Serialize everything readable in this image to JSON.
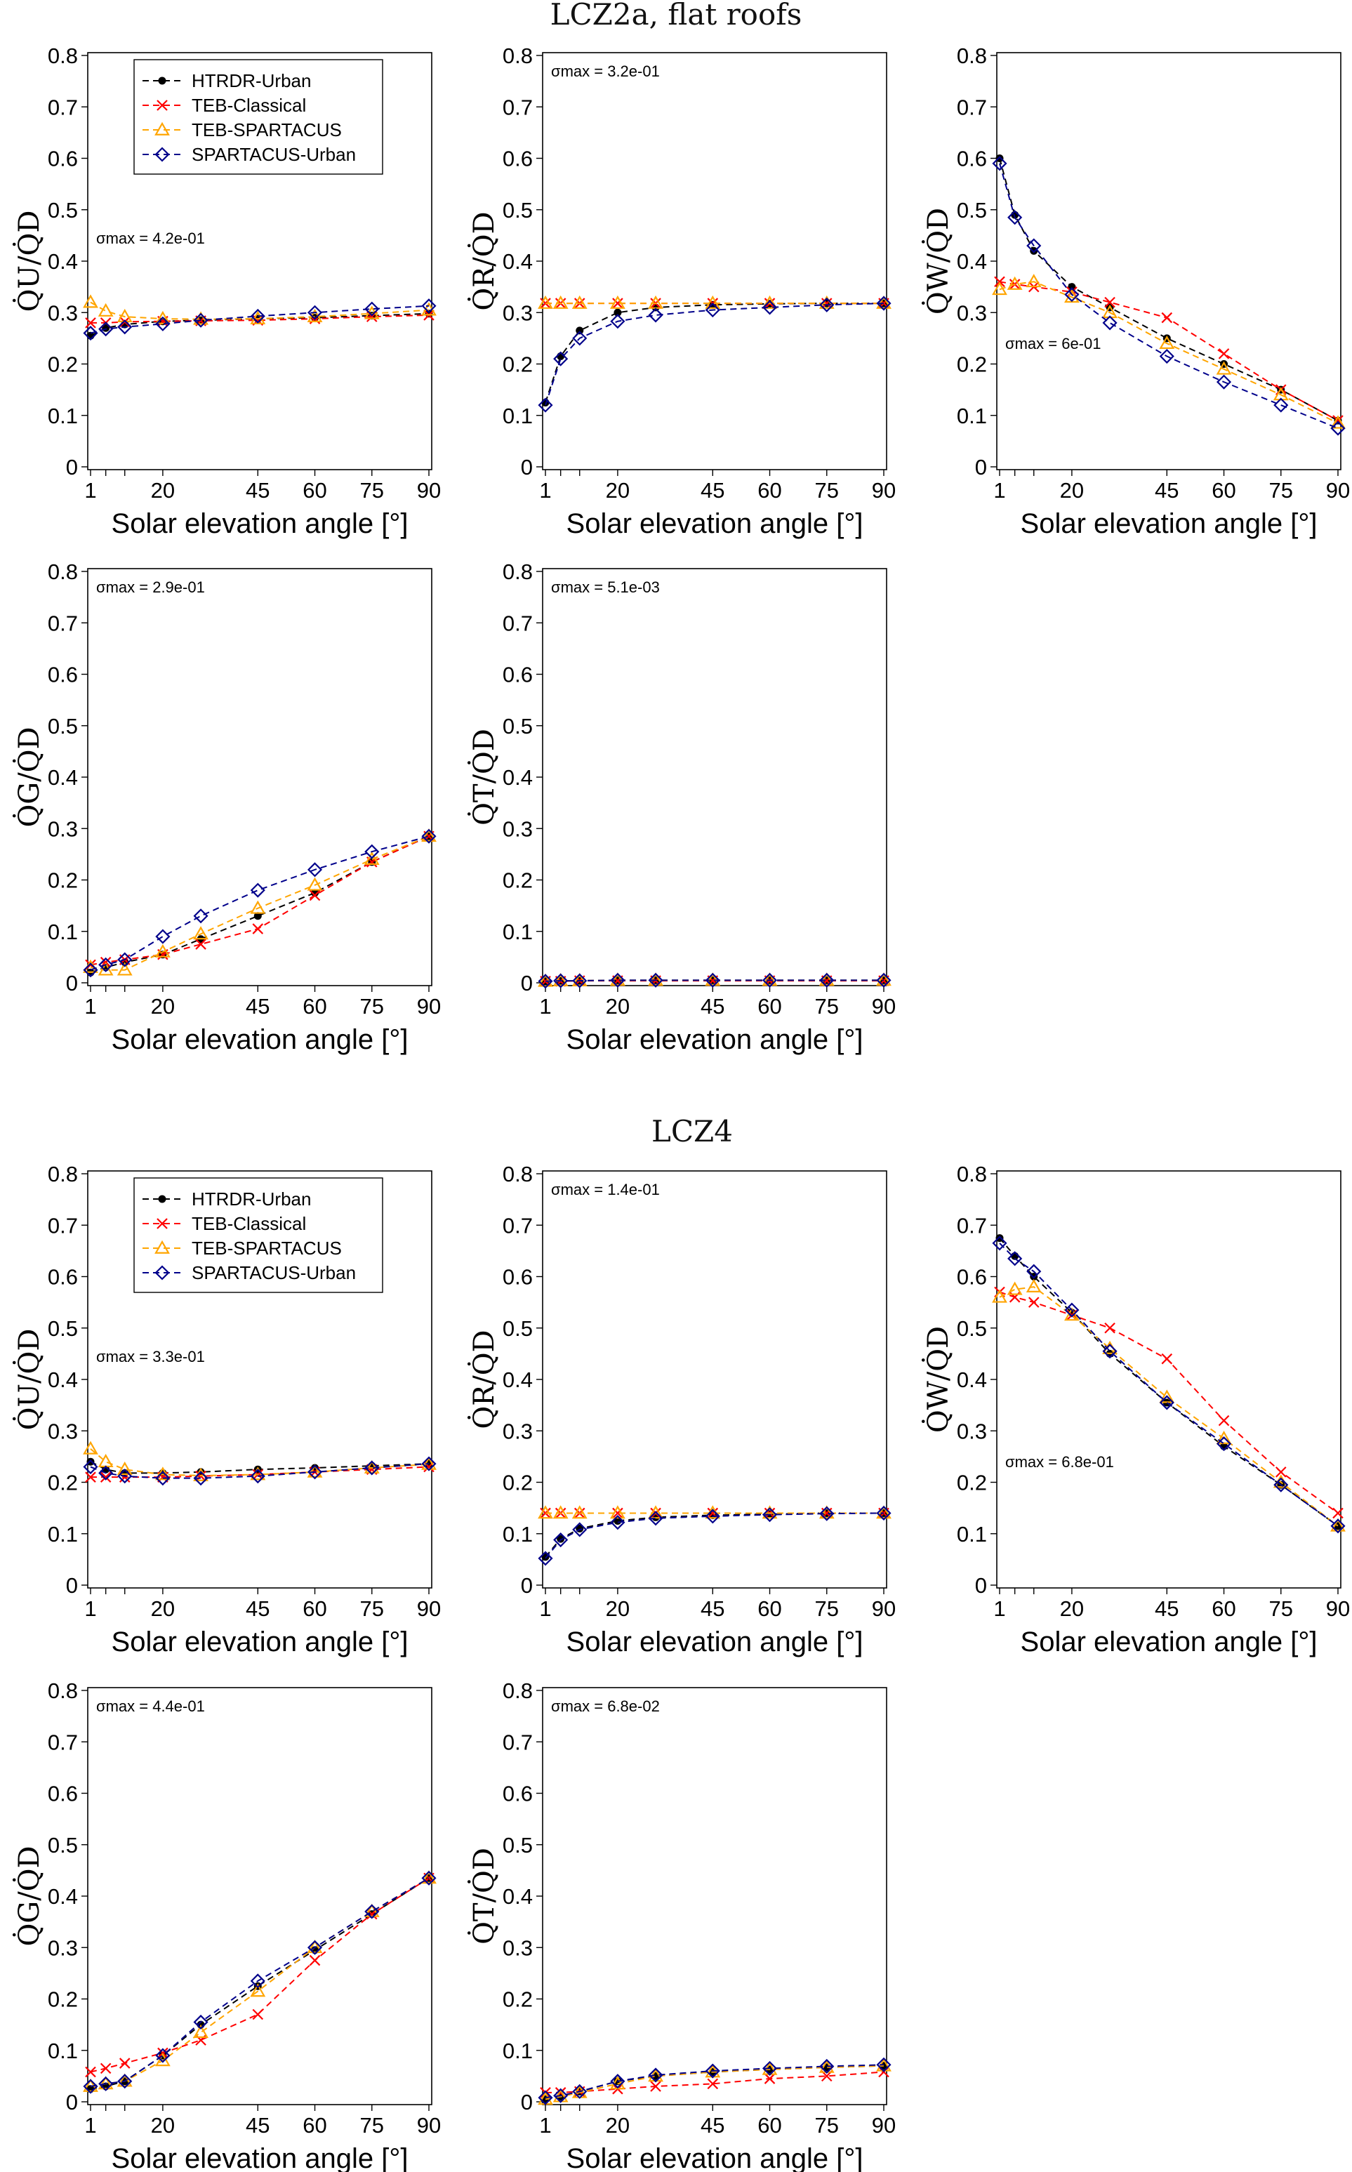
{
  "section_titles": [
    "LCZ2a, flat roofs",
    "LCZ4"
  ],
  "series_styles": [
    {
      "name": "HTRDR-Urban",
      "color": "#000000",
      "marker": "dot"
    },
    {
      "name": "TEB-Classical",
      "color": "#ff0000",
      "marker": "x"
    },
    {
      "name": "TEB-SPARTACUS",
      "color": "#ffa500",
      "marker": "triangle"
    },
    {
      "name": "SPARTACUS-Urban",
      "color": "#00008b",
      "marker": "diamond"
    }
  ],
  "chart_data": [
    {
      "type": "line",
      "section": "LCZ2a, flat roofs",
      "xlabel": "Solar elevation angle [°]",
      "ylabel": "Q̇U/Q̇D",
      "y_symbol": "U",
      "xlim": [
        1,
        90
      ],
      "ylim": [
        0,
        0.8
      ],
      "xticks": [
        1,
        20,
        45,
        60,
        75,
        90
      ],
      "minor_xticks": [
        5,
        10
      ],
      "yticks": [
        0,
        0.1,
        0.2,
        0.3,
        0.4,
        0.5,
        0.6,
        0.7,
        0.8
      ],
      "sigma_label": "σmax = 4.2e-01",
      "legend": "top-left",
      "x": [
        1,
        5,
        10,
        20,
        30,
        45,
        60,
        75,
        90
      ],
      "series": [
        {
          "name": "HTRDR-Urban",
          "values": [
            0.255,
            0.27,
            0.277,
            0.283,
            0.285,
            0.288,
            0.29,
            0.294,
            0.298
          ]
        },
        {
          "name": "TEB-Classical",
          "values": [
            0.28,
            0.28,
            0.282,
            0.283,
            0.284,
            0.285,
            0.288,
            0.292,
            0.295
          ]
        },
        {
          "name": "TEB-SPARTACUS",
          "values": [
            0.32,
            0.303,
            0.292,
            0.288,
            0.287,
            0.288,
            0.292,
            0.298,
            0.305
          ]
        },
        {
          "name": "SPARTACUS-Urban",
          "values": [
            0.26,
            0.268,
            0.272,
            0.278,
            0.285,
            0.293,
            0.3,
            0.307,
            0.313
          ]
        }
      ]
    },
    {
      "type": "line",
      "section": "LCZ2a, flat roofs",
      "xlabel": "Solar elevation angle [°]",
      "ylabel": "Q̇R/Q̇D",
      "y_symbol": "R",
      "xlim": [
        1,
        90
      ],
      "ylim": [
        0,
        0.8
      ],
      "xticks": [
        1,
        20,
        45,
        60,
        75,
        90
      ],
      "minor_xticks": [
        5,
        10
      ],
      "yticks": [
        0,
        0.1,
        0.2,
        0.3,
        0.4,
        0.5,
        0.6,
        0.7,
        0.8
      ],
      "sigma_label": "σmax = 3.2e-01",
      "legend": "none",
      "x": [
        1,
        5,
        10,
        20,
        30,
        45,
        60,
        75,
        90
      ],
      "series": [
        {
          "name": "HTRDR-Urban",
          "values": [
            0.125,
            0.215,
            0.265,
            0.3,
            0.31,
            0.315,
            0.317,
            0.318,
            0.318
          ]
        },
        {
          "name": "TEB-Classical",
          "values": [
            0.318,
            0.318,
            0.318,
            0.318,
            0.318,
            0.318,
            0.318,
            0.318,
            0.318
          ]
        },
        {
          "name": "TEB-SPARTACUS",
          "values": [
            0.318,
            0.318,
            0.318,
            0.318,
            0.318,
            0.318,
            0.318,
            0.318,
            0.318
          ]
        },
        {
          "name": "SPARTACUS-Urban",
          "values": [
            0.12,
            0.21,
            0.25,
            0.283,
            0.295,
            0.305,
            0.31,
            0.315,
            0.318
          ]
        }
      ]
    },
    {
      "type": "line",
      "section": "LCZ2a, flat roofs",
      "xlabel": "Solar elevation angle [°]",
      "ylabel": "Q̇W/Q̇D",
      "y_symbol": "W",
      "xlim": [
        1,
        90
      ],
      "ylim": [
        0,
        0.8
      ],
      "xticks": [
        1,
        20,
        45,
        60,
        75,
        90
      ],
      "minor_xticks": [
        5,
        10
      ],
      "yticks": [
        0,
        0.1,
        0.2,
        0.3,
        0.4,
        0.5,
        0.6,
        0.7,
        0.8
      ],
      "sigma_label": "σmax = 6e-01",
      "legend": "none",
      "x": [
        1,
        5,
        10,
        20,
        30,
        45,
        60,
        75,
        90
      ],
      "series": [
        {
          "name": "HTRDR-Urban",
          "values": [
            0.6,
            0.49,
            0.42,
            0.35,
            0.31,
            0.25,
            0.2,
            0.15,
            0.09
          ]
        },
        {
          "name": "TEB-Classical",
          "values": [
            0.36,
            0.355,
            0.35,
            0.34,
            0.32,
            0.29,
            0.22,
            0.15,
            0.09
          ]
        },
        {
          "name": "TEB-SPARTACUS",
          "values": [
            0.345,
            0.355,
            0.36,
            0.33,
            0.3,
            0.24,
            0.19,
            0.14,
            0.085
          ]
        },
        {
          "name": "SPARTACUS-Urban",
          "values": [
            0.59,
            0.485,
            0.43,
            0.335,
            0.28,
            0.215,
            0.165,
            0.12,
            0.075
          ]
        }
      ]
    },
    {
      "type": "line",
      "section": "LCZ2a, flat roofs",
      "xlabel": "Solar elevation angle [°]",
      "ylabel": "Q̇G/Q̇D",
      "y_symbol": "G",
      "xlim": [
        1,
        90
      ],
      "ylim": [
        0,
        0.8
      ],
      "xticks": [
        1,
        20,
        45,
        60,
        75,
        90
      ],
      "minor_xticks": [
        5,
        10
      ],
      "yticks": [
        0,
        0.1,
        0.2,
        0.3,
        0.4,
        0.5,
        0.6,
        0.7,
        0.8
      ],
      "sigma_label": "σmax = 2.9e-01",
      "legend": "none",
      "x": [
        1,
        5,
        10,
        20,
        30,
        45,
        60,
        75,
        90
      ],
      "series": [
        {
          "name": "HTRDR-Urban",
          "values": [
            0.02,
            0.03,
            0.04,
            0.055,
            0.085,
            0.13,
            0.175,
            0.235,
            0.285
          ]
        },
        {
          "name": "TEB-Classical",
          "values": [
            0.035,
            0.04,
            0.045,
            0.055,
            0.075,
            0.105,
            0.17,
            0.235,
            0.285
          ]
        },
        {
          "name": "TEB-SPARTACUS",
          "values": [
            0.03,
            0.025,
            0.025,
            0.06,
            0.095,
            0.145,
            0.19,
            0.24,
            0.285
          ]
        },
        {
          "name": "SPARTACUS-Urban",
          "values": [
            0.025,
            0.035,
            0.045,
            0.09,
            0.13,
            0.18,
            0.22,
            0.255,
            0.285
          ]
        }
      ]
    },
    {
      "type": "line",
      "section": "LCZ2a, flat roofs",
      "xlabel": "Solar elevation angle [°]",
      "ylabel": "Q̇T/Q̇D",
      "y_symbol": "T",
      "xlim": [
        1,
        90
      ],
      "ylim": [
        0,
        0.8
      ],
      "xticks": [
        1,
        20,
        45,
        60,
        75,
        90
      ],
      "minor_xticks": [
        5,
        10
      ],
      "yticks": [
        0,
        0.1,
        0.2,
        0.3,
        0.4,
        0.5,
        0.6,
        0.7,
        0.8
      ],
      "sigma_label": "σmax = 5.1e-03",
      "legend": "none",
      "x": [
        1,
        5,
        10,
        20,
        30,
        45,
        60,
        75,
        90
      ],
      "series": [
        {
          "name": "HTRDR-Urban",
          "values": [
            0.003,
            0.004,
            0.004,
            0.005,
            0.005,
            0.005,
            0.005,
            0.005,
            0.005
          ]
        },
        {
          "name": "TEB-Classical",
          "values": [
            0.003,
            0.003,
            0.004,
            0.004,
            0.004,
            0.004,
            0.004,
            0.004,
            0.004
          ]
        },
        {
          "name": "TEB-SPARTACUS",
          "values": [
            0.003,
            0.004,
            0.004,
            0.005,
            0.005,
            0.005,
            0.005,
            0.005,
            0.005
          ]
        },
        {
          "name": "SPARTACUS-Urban",
          "values": [
            0.003,
            0.004,
            0.004,
            0.005,
            0.005,
            0.005,
            0.005,
            0.005,
            0.005
          ]
        }
      ]
    },
    {
      "type": "line",
      "section": "LCZ4",
      "xlabel": "Solar elevation angle [°]",
      "ylabel": "Q̇U/Q̇D",
      "y_symbol": "U",
      "xlim": [
        1,
        90
      ],
      "ylim": [
        0,
        0.8
      ],
      "xticks": [
        1,
        20,
        45,
        60,
        75,
        90
      ],
      "minor_xticks": [
        5,
        10
      ],
      "yticks": [
        0,
        0.1,
        0.2,
        0.3,
        0.4,
        0.5,
        0.6,
        0.7,
        0.8
      ],
      "sigma_label": "σmax = 3.3e-01",
      "legend": "top-left",
      "x": [
        1,
        5,
        10,
        20,
        30,
        45,
        60,
        75,
        90
      ],
      "series": [
        {
          "name": "HTRDR-Urban",
          "values": [
            0.24,
            0.225,
            0.218,
            0.218,
            0.22,
            0.225,
            0.228,
            0.232,
            0.236
          ]
        },
        {
          "name": "TEB-Classical",
          "values": [
            0.21,
            0.21,
            0.21,
            0.21,
            0.212,
            0.215,
            0.22,
            0.225,
            0.23
          ]
        },
        {
          "name": "TEB-SPARTACUS",
          "values": [
            0.265,
            0.24,
            0.225,
            0.215,
            0.213,
            0.215,
            0.22,
            0.228,
            0.235
          ]
        },
        {
          "name": "SPARTACUS-Urban",
          "values": [
            0.23,
            0.218,
            0.212,
            0.208,
            0.208,
            0.212,
            0.22,
            0.228,
            0.236
          ]
        }
      ]
    },
    {
      "type": "line",
      "section": "LCZ4",
      "xlabel": "Solar elevation angle [°]",
      "ylabel": "Q̇R/Q̇D",
      "y_symbol": "R",
      "xlim": [
        1,
        90
      ],
      "ylim": [
        0,
        0.8
      ],
      "xticks": [
        1,
        20,
        45,
        60,
        75,
        90
      ],
      "minor_xticks": [
        5,
        10
      ],
      "yticks": [
        0,
        0.1,
        0.2,
        0.3,
        0.4,
        0.5,
        0.6,
        0.7,
        0.8
      ],
      "sigma_label": "σmax = 1.4e-01",
      "legend": "none",
      "x": [
        1,
        5,
        10,
        20,
        30,
        45,
        60,
        75,
        90
      ],
      "series": [
        {
          "name": "HTRDR-Urban",
          "values": [
            0.055,
            0.09,
            0.11,
            0.125,
            0.132,
            0.136,
            0.138,
            0.14,
            0.14
          ]
        },
        {
          "name": "TEB-Classical",
          "values": [
            0.14,
            0.14,
            0.14,
            0.14,
            0.14,
            0.14,
            0.14,
            0.14,
            0.14
          ]
        },
        {
          "name": "TEB-SPARTACUS",
          "values": [
            0.14,
            0.14,
            0.14,
            0.14,
            0.14,
            0.14,
            0.14,
            0.14,
            0.14
          ]
        },
        {
          "name": "SPARTACUS-Urban",
          "values": [
            0.052,
            0.088,
            0.108,
            0.122,
            0.13,
            0.134,
            0.137,
            0.139,
            0.14
          ]
        }
      ]
    },
    {
      "type": "line",
      "section": "LCZ4",
      "xlabel": "Solar elevation angle [°]",
      "ylabel": "Q̇W/Q̇D",
      "y_symbol": "W",
      "xlim": [
        1,
        90
      ],
      "ylim": [
        0,
        0.8
      ],
      "xticks": [
        1,
        20,
        45,
        60,
        75,
        90
      ],
      "minor_xticks": [
        5,
        10
      ],
      "yticks": [
        0,
        0.1,
        0.2,
        0.3,
        0.4,
        0.5,
        0.6,
        0.7,
        0.8
      ],
      "sigma_label": "σmax = 6.8e-01",
      "legend": "none",
      "x": [
        1,
        5,
        10,
        20,
        30,
        45,
        60,
        75,
        90
      ],
      "series": [
        {
          "name": "HTRDR-Urban",
          "values": [
            0.675,
            0.64,
            0.6,
            0.53,
            0.45,
            0.355,
            0.27,
            0.195,
            0.115
          ]
        },
        {
          "name": "TEB-Classical",
          "values": [
            0.57,
            0.56,
            0.55,
            0.525,
            0.5,
            0.44,
            0.32,
            0.22,
            0.14
          ]
        },
        {
          "name": "TEB-SPARTACUS",
          "values": [
            0.56,
            0.575,
            0.58,
            0.525,
            0.46,
            0.365,
            0.285,
            0.2,
            0.115
          ]
        },
        {
          "name": "SPARTACUS-Urban",
          "values": [
            0.665,
            0.635,
            0.61,
            0.535,
            0.455,
            0.355,
            0.275,
            0.195,
            0.115
          ]
        }
      ]
    },
    {
      "type": "line",
      "section": "LCZ4",
      "xlabel": "Solar elevation angle [°]",
      "ylabel": "Q̇G/Q̇D",
      "y_symbol": "G",
      "xlim": [
        1,
        90
      ],
      "ylim": [
        0,
        0.8
      ],
      "xticks": [
        1,
        20,
        45,
        60,
        75,
        90
      ],
      "minor_xticks": [
        5,
        10
      ],
      "yticks": [
        0,
        0.1,
        0.2,
        0.3,
        0.4,
        0.5,
        0.6,
        0.7,
        0.8
      ],
      "sigma_label": "σmax = 4.4e-01",
      "legend": "none",
      "x": [
        1,
        5,
        10,
        20,
        30,
        45,
        60,
        75,
        90
      ],
      "series": [
        {
          "name": "HTRDR-Urban",
          "values": [
            0.025,
            0.03,
            0.04,
            0.09,
            0.15,
            0.225,
            0.295,
            0.365,
            0.435
          ]
        },
        {
          "name": "TEB-Classical",
          "values": [
            0.058,
            0.065,
            0.075,
            0.095,
            0.12,
            0.17,
            0.275,
            0.365,
            0.435
          ]
        },
        {
          "name": "TEB-SPARTACUS",
          "values": [
            0.03,
            0.035,
            0.04,
            0.08,
            0.135,
            0.215,
            0.3,
            0.37,
            0.435
          ]
        },
        {
          "name": "SPARTACUS-Urban",
          "values": [
            0.03,
            0.035,
            0.04,
            0.09,
            0.155,
            0.235,
            0.3,
            0.37,
            0.435
          ]
        }
      ]
    },
    {
      "type": "line",
      "section": "LCZ4",
      "xlabel": "Solar elevation angle [°]",
      "ylabel": "Q̇T/Q̇D",
      "y_symbol": "T",
      "xlim": [
        1,
        90
      ],
      "ylim": [
        0,
        0.8
      ],
      "xticks": [
        1,
        20,
        45,
        60,
        75,
        90
      ],
      "minor_xticks": [
        5,
        10
      ],
      "yticks": [
        0,
        0.1,
        0.2,
        0.3,
        0.4,
        0.5,
        0.6,
        0.7,
        0.8
      ],
      "sigma_label": "σmax = 6.8e-02",
      "legend": "none",
      "x": [
        1,
        5,
        10,
        20,
        30,
        45,
        60,
        75,
        90
      ],
      "series": [
        {
          "name": "HTRDR-Urban",
          "values": [
            0.005,
            0.01,
            0.02,
            0.04,
            0.05,
            0.058,
            0.063,
            0.067,
            0.07
          ]
        },
        {
          "name": "TEB-Classical",
          "values": [
            0.018,
            0.018,
            0.02,
            0.025,
            0.03,
            0.035,
            0.045,
            0.05,
            0.058
          ]
        },
        {
          "name": "TEB-SPARTACUS",
          "values": [
            0.005,
            0.01,
            0.018,
            0.035,
            0.05,
            0.058,
            0.063,
            0.067,
            0.07
          ]
        },
        {
          "name": "SPARTACUS-Urban",
          "values": [
            0.008,
            0.012,
            0.02,
            0.04,
            0.052,
            0.06,
            0.065,
            0.069,
            0.072
          ]
        }
      ]
    }
  ]
}
